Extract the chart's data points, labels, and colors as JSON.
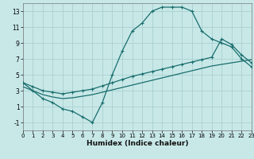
{
  "xlabel": "Humidex (Indice chaleur)",
  "bg_color": "#c8e8e8",
  "grid_color": "#aacfcf",
  "line_color": "#1a6e6e",
  "xlim": [
    0,
    23
  ],
  "ylim": [
    -2,
    14
  ],
  "xticks": [
    0,
    1,
    2,
    3,
    4,
    5,
    6,
    7,
    8,
    9,
    10,
    11,
    12,
    13,
    14,
    15,
    16,
    17,
    18,
    19,
    20,
    21,
    22,
    23
  ],
  "yticks": [
    -1,
    1,
    3,
    5,
    7,
    9,
    11,
    13
  ],
  "curve1_x": [
    0,
    1,
    2,
    3,
    4,
    5,
    6,
    7,
    8,
    9,
    10,
    11,
    12,
    13,
    14,
    15,
    16,
    17,
    18,
    19,
    20,
    21,
    22,
    23
  ],
  "curve1_y": [
    4.0,
    3.0,
    2.0,
    1.5,
    0.7,
    0.4,
    -0.3,
    -1.0,
    1.5,
    5.0,
    8.0,
    10.5,
    11.5,
    13.0,
    13.5,
    13.5,
    13.5,
    13.0,
    10.5,
    9.5,
    9.0,
    8.5,
    7.0,
    6.0
  ],
  "curve2_x": [
    0,
    1,
    2,
    3,
    4,
    5,
    6,
    7,
    8,
    9,
    10,
    11,
    12,
    13,
    14,
    15,
    16,
    17,
    18,
    19,
    20,
    21,
    22,
    23
  ],
  "curve2_y": [
    4.0,
    3.5,
    3.0,
    2.8,
    2.6,
    2.8,
    3.0,
    3.2,
    3.6,
    4.0,
    4.4,
    4.8,
    5.1,
    5.4,
    5.7,
    6.0,
    6.3,
    6.6,
    6.9,
    7.2,
    9.5,
    8.8,
    7.5,
    6.5
  ],
  "curve3_x": [
    0,
    1,
    2,
    3,
    4,
    5,
    6,
    7,
    8,
    9,
    10,
    11,
    12,
    13,
    14,
    15,
    16,
    17,
    18,
    19,
    20,
    21,
    22,
    23
  ],
  "curve3_y": [
    3.5,
    3.0,
    2.5,
    2.2,
    2.0,
    2.1,
    2.3,
    2.5,
    2.8,
    3.1,
    3.4,
    3.7,
    4.0,
    4.3,
    4.6,
    4.9,
    5.2,
    5.5,
    5.8,
    6.1,
    6.3,
    6.5,
    6.7,
    6.9
  ]
}
